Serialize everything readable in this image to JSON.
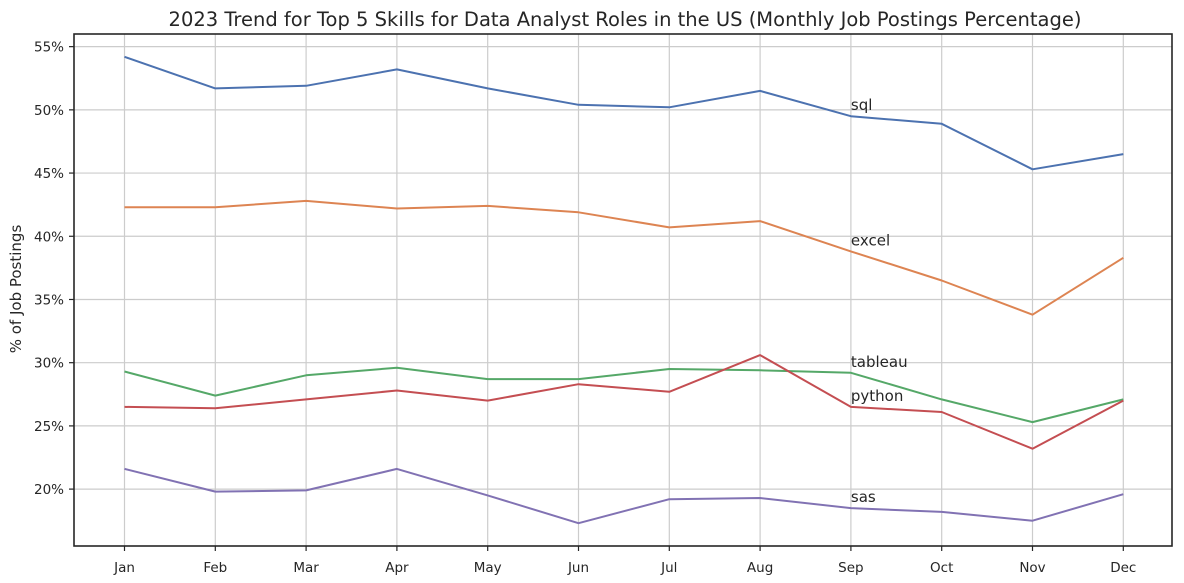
{
  "chart_data": {
    "type": "line",
    "title": "2023 Trend for Top 5 Skills for Data Analyst Roles in the US (Monthly Job Postings Percentage)",
    "xlabel": "",
    "ylabel": "% of Job Postings",
    "categories": [
      "Jan",
      "Feb",
      "Mar",
      "Apr",
      "May",
      "Jun",
      "Jul",
      "Aug",
      "Sep",
      "Oct",
      "Nov",
      "Dec"
    ],
    "yticks": [
      20,
      25,
      30,
      35,
      40,
      45,
      50,
      55
    ],
    "ytick_labels": [
      "20%",
      "25%",
      "30%",
      "35%",
      "40%",
      "45%",
      "50%",
      "55%"
    ],
    "ylim": [
      15.5,
      56
    ],
    "grid": true,
    "legend": "none",
    "series": [
      {
        "name": "sql",
        "color": "#4c72b0",
        "label_at": "Sep",
        "values": [
          54.2,
          51.7,
          51.9,
          53.2,
          51.7,
          50.4,
          50.2,
          51.5,
          49.5,
          48.9,
          45.3,
          46.5
        ]
      },
      {
        "name": "excel",
        "color": "#dd8452",
        "label_at": "Sep",
        "values": [
          42.3,
          42.3,
          42.8,
          42.2,
          42.4,
          41.9,
          40.7,
          41.2,
          38.8,
          36.5,
          33.8,
          38.3
        ]
      },
      {
        "name": "tableau",
        "color": "#55a868",
        "label_at": "Sep",
        "values": [
          29.3,
          27.4,
          29.0,
          29.6,
          28.7,
          28.7,
          29.5,
          29.4,
          29.2,
          27.1,
          25.3,
          27.1
        ]
      },
      {
        "name": "python",
        "color": "#c44e52",
        "label_at": "Sep",
        "values": [
          26.5,
          26.4,
          27.1,
          27.8,
          27.0,
          28.3,
          27.7,
          30.6,
          26.5,
          26.1,
          23.2,
          27.0
        ]
      },
      {
        "name": "sas",
        "color": "#8172b3",
        "label_at": "Sep",
        "values": [
          21.6,
          19.8,
          19.9,
          21.6,
          19.5,
          17.3,
          19.2,
          19.3,
          18.5,
          18.2,
          17.5,
          19.6
        ]
      }
    ]
  }
}
